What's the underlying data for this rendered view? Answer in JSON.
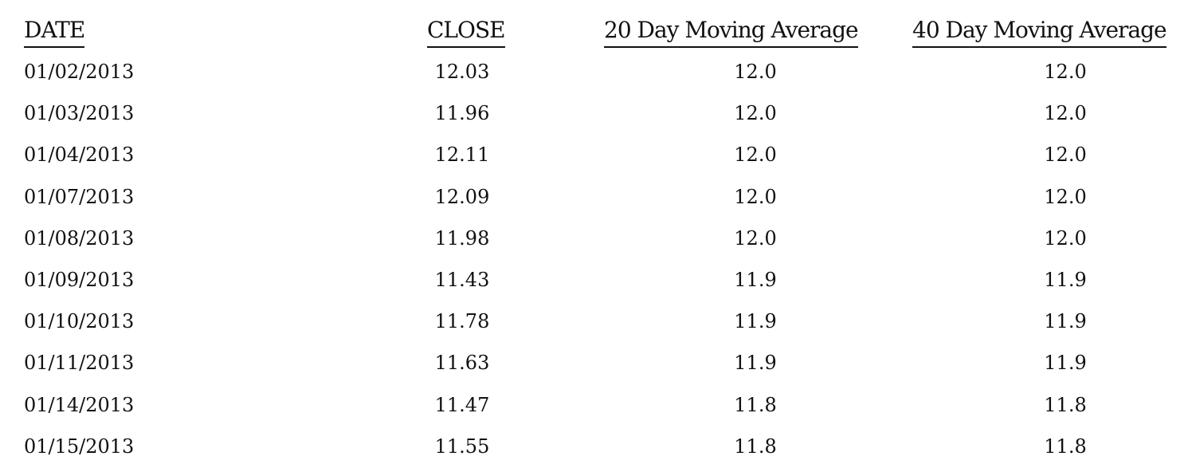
{
  "headers": {
    "date": "DATE",
    "close": "CLOSE",
    "ma20": "20 Day Moving Average",
    "ma40": "40 Day Moving Average"
  },
  "rows": [
    {
      "date": "01/02/2013",
      "close": "12.03",
      "ma20": "12.0",
      "ma40": "12.0"
    },
    {
      "date": "01/03/2013",
      "close": "11.96",
      "ma20": "12.0",
      "ma40": "12.0"
    },
    {
      "date": "01/04/2013",
      "close": "12.11",
      "ma20": "12.0",
      "ma40": "12.0"
    },
    {
      "date": "01/07/2013",
      "close": "12.09",
      "ma20": "12.0",
      "ma40": "12.0"
    },
    {
      "date": "01/08/2013",
      "close": "11.98",
      "ma20": "12.0",
      "ma40": "12.0"
    },
    {
      "date": "01/09/2013",
      "close": "11.43",
      "ma20": "11.9",
      "ma40": "11.9"
    },
    {
      "date": "01/10/2013",
      "close": "11.78",
      "ma20": "11.9",
      "ma40": "11.9"
    },
    {
      "date": "01/11/2013",
      "close": "11.63",
      "ma20": "11.9",
      "ma40": "11.9"
    },
    {
      "date": "01/14/2013",
      "close": "11.47",
      "ma20": "11.8",
      "ma40": "11.8"
    },
    {
      "date": "01/15/2013",
      "close": "11.55",
      "ma20": "11.8",
      "ma40": "11.8"
    }
  ]
}
